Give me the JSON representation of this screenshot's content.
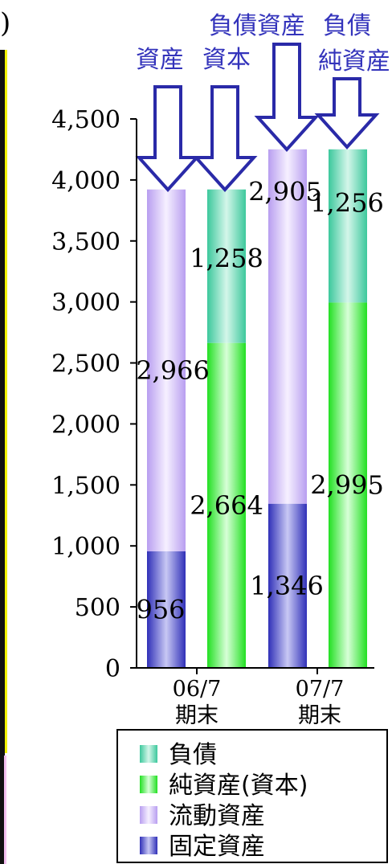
{
  "chart_data": {
    "type": "bar",
    "stacked": true,
    "yticks": [
      "0",
      "500",
      "1,000",
      "1,500",
      "2,000",
      "2,500",
      "3,000",
      "3,500",
      "4,000",
      "4,500"
    ],
    "ylim": [
      0,
      4500
    ],
    "categories": [
      {
        "line1": "06/7",
        "line2": "期末"
      },
      {
        "line1": "07/7",
        "line2": "期末"
      }
    ],
    "bars": [
      {
        "category": 0,
        "segments": [
          {
            "series": "固定資産",
            "value": 956,
            "label": "956"
          },
          {
            "series": "流動資産",
            "value": 2966,
            "label": "2,966"
          }
        ]
      },
      {
        "category": 0,
        "segments": [
          {
            "series": "純資産(資本)",
            "value": 2664,
            "label": "2,664"
          },
          {
            "series": "負債",
            "value": 1258,
            "label": "1,258"
          }
        ]
      },
      {
        "category": 1,
        "segments": [
          {
            "series": "固定資産",
            "value": 1346,
            "label": "1,346"
          },
          {
            "series": "流動資産",
            "value": 2905,
            "label": "2,905"
          }
        ]
      },
      {
        "category": 1,
        "segments": [
          {
            "series": "純資産(資本)",
            "value": 2995,
            "label": "2,995"
          },
          {
            "series": "負債",
            "value": 1256,
            "label": "1,256"
          }
        ]
      }
    ],
    "legend": [
      {
        "name": "負債",
        "color": "#3fcfa8"
      },
      {
        "name": "純資産(資本)",
        "color": "#33ee33"
      },
      {
        "name": "流動資産",
        "color": "#bfa8f0"
      },
      {
        "name": "固定資産",
        "color": "#3b3bc8"
      }
    ],
    "annotations": {
      "bar1": "資産",
      "bar2": "資本",
      "bar3": "負債資産",
      "bar4_line1": "負債",
      "bar4_line2": "純資産"
    },
    "top_left_text": ")"
  }
}
